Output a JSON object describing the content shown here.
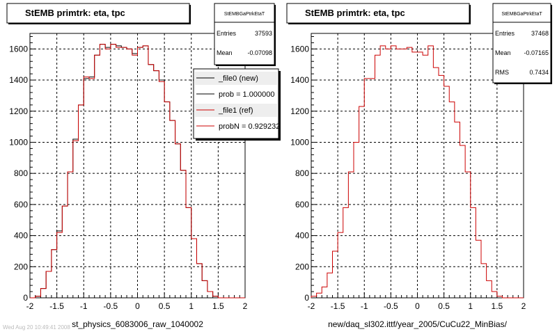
{
  "chart_data": [
    {
      "type": "histogram",
      "title": "StEMB primtrk: eta, tpc",
      "xlabel": "st_physics_6083006_raw_1040002",
      "xlim": [
        -2,
        2
      ],
      "ylim": [
        0,
        1700
      ],
      "x_ticks": [
        "-2",
        "-1.5",
        "-1",
        "-0.5",
        "0",
        "0.5",
        "1",
        "1.5",
        "2"
      ],
      "y_ticks": [
        "0",
        "200",
        "400",
        "600",
        "800",
        "1000",
        "1200",
        "1400",
        "1600"
      ],
      "grid": true,
      "bin_edges_start": -2.0,
      "bin_width": 0.1,
      "stats": {
        "header": "StEMBGaPtrkEtaT",
        "rows": [
          {
            "label": "Entries",
            "value": "37593"
          },
          {
            "label": "Mean",
            "value": "-0.07098"
          }
        ]
      },
      "legend": [
        {
          "label": "_file0 (new)",
          "color": "#000000"
        },
        {
          "label": "prob = 1.000000",
          "color": "#000000"
        },
        {
          "label": "_file1 (ref)",
          "color": "#cc0000"
        },
        {
          "label": "probN = 0.929232",
          "color": "#cc0000"
        }
      ],
      "series": [
        {
          "color": "#000000",
          "values": [
            0,
            10,
            60,
            170,
            310,
            430,
            590,
            810,
            1020,
            1240,
            1410,
            1420,
            1560,
            1630,
            1610,
            1630,
            1620,
            1610,
            1600,
            1570,
            1610,
            1620,
            1500,
            1460,
            1400,
            1260,
            1140,
            990,
            820,
            580,
            380,
            220,
            110,
            40,
            10,
            0,
            0,
            0,
            0,
            0
          ]
        },
        {
          "color": "#cc0000",
          "values": [
            0,
            10,
            60,
            170,
            310,
            420,
            590,
            810,
            1010,
            1240,
            1420,
            1410,
            1560,
            1630,
            1600,
            1630,
            1610,
            1610,
            1600,
            1560,
            1610,
            1620,
            1500,
            1460,
            1390,
            1260,
            1140,
            990,
            820,
            580,
            380,
            220,
            110,
            40,
            10,
            0,
            0,
            0,
            0,
            0
          ]
        }
      ]
    },
    {
      "type": "histogram",
      "title": "StEMB primtrk: eta, tpc",
      "xlabel": "new/daq_sl302.ittf/year_2005/CuCu22_MinBias/",
      "xlim": [
        -2,
        2
      ],
      "ylim": [
        0,
        1700
      ],
      "x_ticks": [
        "-2",
        "-1.5",
        "-1",
        "-0.5",
        "0",
        "0.5",
        "1",
        "1.5",
        "2"
      ],
      "y_ticks": [
        "0",
        "200",
        "400",
        "600",
        "800",
        "1000",
        "1200",
        "1400",
        "1600"
      ],
      "grid": true,
      "bin_edges_start": -2.0,
      "bin_width": 0.1,
      "stats": {
        "header": "StEMBGaPtrkEtaT",
        "rows": [
          {
            "label": "Entries",
            "value": "37468"
          },
          {
            "label": "Mean",
            "value": "-0.07165"
          },
          {
            "label": "RMS",
            "value": "0.7434"
          }
        ]
      },
      "legend": [],
      "series": [
        {
          "color": "#cc0000",
          "values": [
            10,
            30,
            70,
            160,
            300,
            420,
            580,
            810,
            1000,
            1230,
            1410,
            1410,
            1560,
            1620,
            1600,
            1620,
            1600,
            1600,
            1610,
            1580,
            1580,
            1560,
            1620,
            1480,
            1430,
            1360,
            1260,
            1130,
            980,
            810,
            580,
            370,
            220,
            110,
            40,
            10,
            0,
            0,
            0,
            0
          ]
        }
      ]
    }
  ],
  "footer_text": "Wed Aug 20 10:49:41 2008"
}
